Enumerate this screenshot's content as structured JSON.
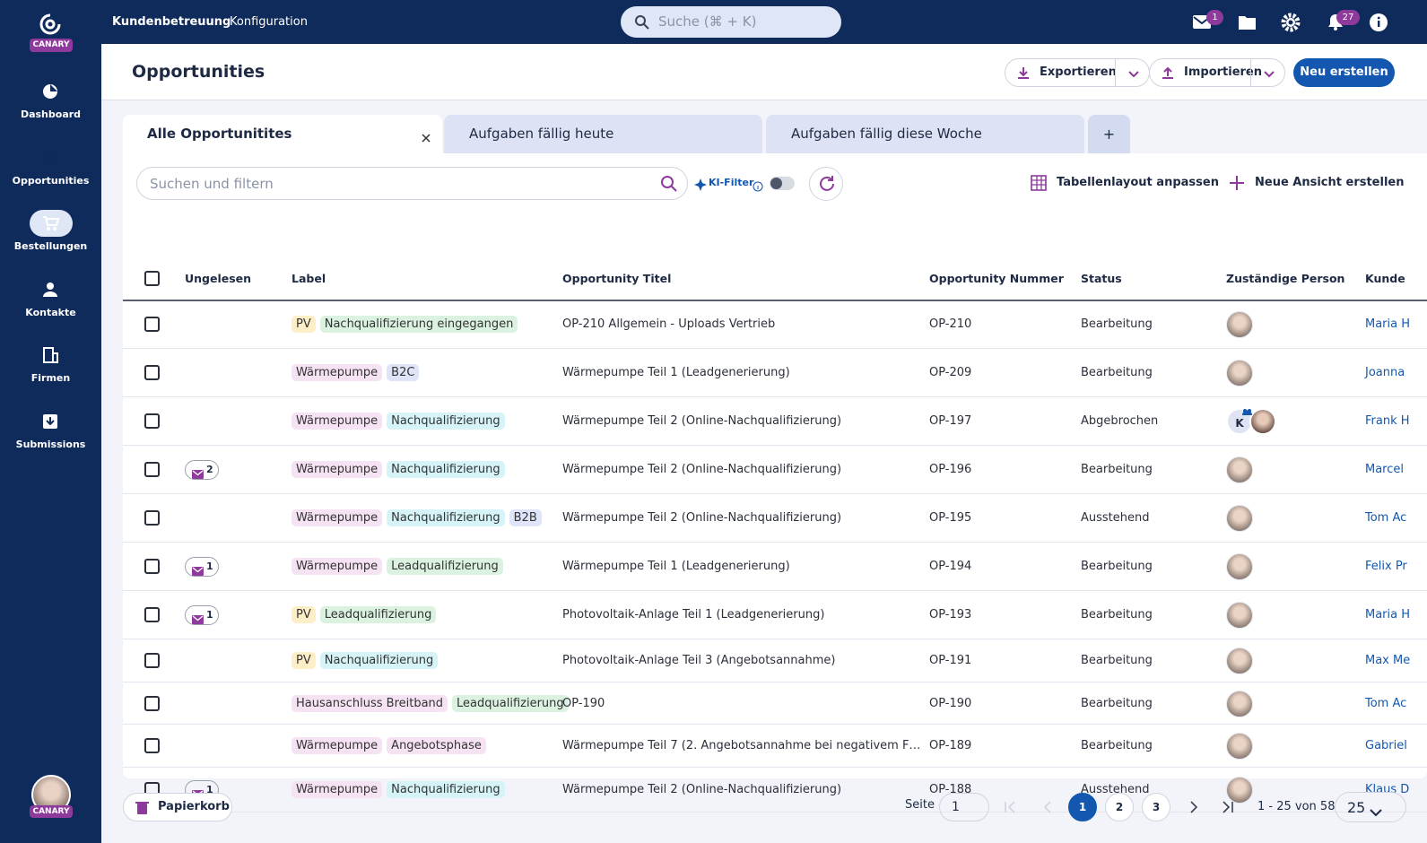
{
  "sidebar": {
    "logo": "CANARY",
    "nav": [
      "Dashboard",
      "Opportunities",
      "Bestellungen",
      "Kontakte",
      "Firmen",
      "Submissions"
    ],
    "user_badge": "CANARY"
  },
  "topbar": {
    "nav": [
      "Kundenbetreuung",
      "Konfiguration"
    ],
    "search_placeholder": "Suche (⌘ + K)",
    "mail_badge": "1",
    "notification_badge": "27"
  },
  "header": {
    "title": "Opportunities",
    "actions": [
      "Exportieren",
      "Importieren",
      "Neu erstellen"
    ]
  },
  "tabs": [
    "Alle Opportunitites",
    "Aufgaben fällig heute",
    "Aufgaben fällig diese Woche",
    "+"
  ],
  "toolbar": {
    "search_placeholder": "Suchen und filtern",
    "ai_filter": "KI-Filter",
    "layout": "Tabellenlayout anpassen",
    "new_view": "Neue Ansicht erstellen"
  },
  "table": {
    "columns": [
      "Ungelesen",
      "Label",
      "Opportunity Titel",
      "Opportunity Nummer",
      "Status",
      "Zuständige Person",
      "Kunde"
    ],
    "rows": [
      {
        "unread": null,
        "labels": [
          {
            "text": "PV",
            "color": "#fcefc8"
          },
          {
            "text": "Nachqualifizierung eingegangen",
            "color": "#dcf2e1"
          }
        ],
        "title": "OP-210 Allgemein - Uploads Vertrieb",
        "number": "OP-210",
        "status": "Bearbeitung",
        "customer": "Maria H"
      },
      {
        "unread": null,
        "labels": [
          {
            "text": "Wärmepumpe",
            "color": "#f5e2f3"
          },
          {
            "text": "B2C",
            "color": "#dfe4f8"
          }
        ],
        "title": "Wärmepumpe Teil 1 (Leadgenerierung)",
        "number": "OP-209",
        "status": "Bearbeitung",
        "customer": "Joanna"
      },
      {
        "unread": null,
        "labels": [
          {
            "text": "Wärmepumpe",
            "color": "#f5e2f3"
          },
          {
            "text": "Nachqualifizierung",
            "color": "#d6f3f7"
          }
        ],
        "title": "Wärmepumpe Teil 2 (Online-Nachqualifizierung)",
        "number": "OP-197",
        "status": "Abgebrochen",
        "person_initial": "K",
        "customer": "Frank H"
      },
      {
        "unread": 2,
        "labels": [
          {
            "text": "Wärmepumpe",
            "color": "#f5e2f3"
          },
          {
            "text": "Nachqualifizierung",
            "color": "#d6f3f7"
          }
        ],
        "title": "Wärmepumpe Teil 2 (Online-Nachqualifizierung)",
        "number": "OP-196",
        "status": "Bearbeitung",
        "customer": "Marcel"
      },
      {
        "unread": null,
        "labels": [
          {
            "text": "Wärmepumpe",
            "color": "#f5e2f3"
          },
          {
            "text": "Nachqualifizierung",
            "color": "#d6f3f7"
          },
          {
            "text": "B2B",
            "color": "#dfe4f8"
          }
        ],
        "title": "Wärmepumpe Teil 2 (Online-Nachqualifizierung)",
        "number": "OP-195",
        "status": "Ausstehend",
        "customer": "Tom Ac"
      },
      {
        "unread": 1,
        "labels": [
          {
            "text": "Wärmepumpe",
            "color": "#f5e2f3"
          },
          {
            "text": "Leadqualifizierung",
            "color": "#dcf2e1"
          }
        ],
        "title": "Wärmepumpe Teil 1 (Leadgenerierung)",
        "number": "OP-194",
        "status": "Bearbeitung",
        "customer": "Felix Pr"
      },
      {
        "unread": 1,
        "labels": [
          {
            "text": "PV",
            "color": "#fcefc8"
          },
          {
            "text": "Leadqualifizierung",
            "color": "#dcf2e1"
          }
        ],
        "title": "Photovoltaik-Anlage Teil 1 (Leadgenerierung)",
        "number": "OP-193",
        "status": "Bearbeitung",
        "customer": "Maria H"
      },
      {
        "unread": null,
        "labels": [
          {
            "text": "PV",
            "color": "#fcefc8"
          },
          {
            "text": "Nachqualifizierung",
            "color": "#d6f3f7"
          }
        ],
        "title": "Photovoltaik-Anlage Teil 3 (Angebotsannahme)",
        "number": "OP-191",
        "status": "Bearbeitung",
        "customer": "Max Me"
      },
      {
        "unread": null,
        "labels": [
          {
            "text": "Hausanschluss Breitband",
            "color": "#f5e2f3"
          },
          {
            "text": "Leadqualifizierung",
            "color": "#dcf2e1"
          }
        ],
        "title": "OP-190",
        "number": "OP-190",
        "status": "Bearbeitung",
        "customer": "Tom Ac"
      },
      {
        "unread": null,
        "labels": [
          {
            "text": "Wärmepumpe",
            "color": "#f5e2f3"
          },
          {
            "text": "Angebotsphase",
            "color": "#f5e2f3"
          }
        ],
        "title": "Wärmepumpe Teil 7 (2. Angebotsannahme bei negativem F…",
        "number": "OP-189",
        "status": "Bearbeitung",
        "customer": "Gabriel"
      },
      {
        "unread": 1,
        "labels": [
          {
            "text": "Wärmepumpe",
            "color": "#f5e2f3"
          },
          {
            "text": "Nachqualifizierung",
            "color": "#d6f3f7"
          }
        ],
        "title": "Wärmepumpe Teil 2 (Online-Nachqualifizierung)",
        "number": "OP-188",
        "status": "Ausstehend",
        "customer": "Klaus D"
      }
    ]
  },
  "footer": {
    "trash": "Papierkorb",
    "page_label": "Seite",
    "page_input": "1",
    "pages": [
      "1",
      "2",
      "3"
    ],
    "range": "1 - 25 von 58",
    "page_size": "25"
  }
}
